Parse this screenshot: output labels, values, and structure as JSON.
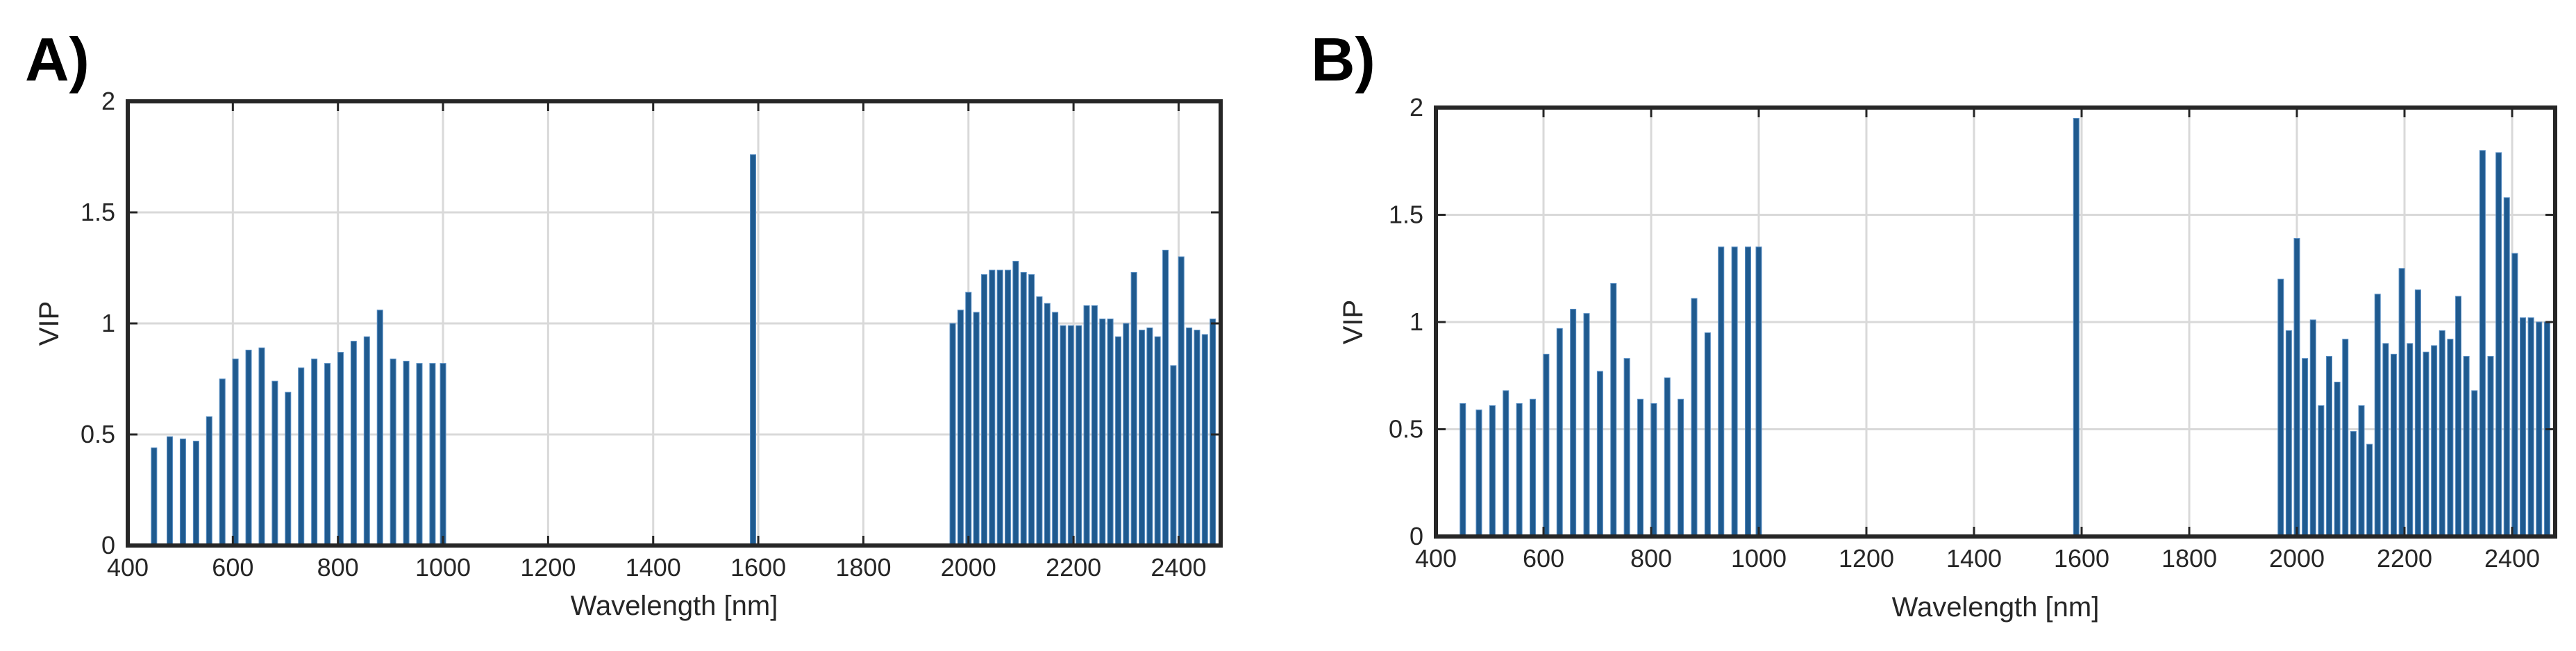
{
  "chart_data": [
    {
      "type": "bar",
      "panel_label": "A)",
      "title": "",
      "xlabel": "Wavelength [nm]",
      "ylabel": "VIP",
      "xlim": [
        400,
        2480
      ],
      "ylim": [
        0,
        2
      ],
      "xticks": [
        400,
        600,
        800,
        1000,
        1200,
        1400,
        1600,
        1800,
        2000,
        2200,
        2400
      ],
      "yticks": [
        0,
        0.5,
        1,
        1.5,
        2
      ],
      "ytick_labels": [
        "0",
        "0.5",
        "1",
        "1.5",
        "2"
      ],
      "grid": true,
      "color": "#1f5a8f",
      "x": [
        450,
        480,
        505,
        530,
        555,
        580,
        605,
        630,
        655,
        680,
        705,
        730,
        755,
        780,
        805,
        830,
        855,
        880,
        905,
        930,
        955,
        980,
        1000,
        1590,
        1970,
        1985,
        2000,
        2015,
        2030,
        2045,
        2060,
        2075,
        2090,
        2105,
        2120,
        2135,
        2150,
        2165,
        2180,
        2195,
        2210,
        2225,
        2240,
        2255,
        2270,
        2285,
        2300,
        2315,
        2330,
        2345,
        2360,
        2375,
        2390,
        2405,
        2420,
        2435,
        2450,
        2465
      ],
      "values": [
        0.44,
        0.49,
        0.48,
        0.47,
        0.58,
        0.75,
        0.84,
        0.88,
        0.89,
        0.74,
        0.69,
        0.8,
        0.84,
        0.82,
        0.87,
        0.92,
        0.94,
        1.06,
        0.84,
        0.83,
        0.82,
        0.82,
        0.82,
        1.76,
        1.0,
        1.06,
        1.14,
        1.05,
        1.22,
        1.24,
        1.24,
        1.24,
        1.28,
        1.23,
        1.22,
        1.12,
        1.09,
        1.05,
        0.99,
        0.99,
        0.99,
        1.08,
        1.08,
        1.02,
        1.02,
        0.94,
        1.0,
        1.23,
        0.97,
        0.98,
        0.94,
        1.33,
        0.81,
        1.3,
        0.98,
        0.97,
        0.95,
        1.02
      ]
    },
    {
      "type": "bar",
      "panel_label": "B)",
      "title": "",
      "xlabel": "Wavelength [nm]",
      "ylabel": "VIP",
      "xlim": [
        400,
        2480
      ],
      "ylim": [
        0,
        2
      ],
      "xticks": [
        400,
        600,
        800,
        1000,
        1200,
        1400,
        1600,
        1800,
        2000,
        2200,
        2400
      ],
      "yticks": [
        0,
        0.5,
        1,
        1.5,
        2
      ],
      "ytick_labels": [
        "0",
        "0.5",
        "1",
        "1.5",
        "2"
      ],
      "grid": true,
      "color": "#1f5a8f",
      "x": [
        450,
        480,
        505,
        530,
        555,
        580,
        605,
        630,
        655,
        680,
        705,
        730,
        755,
        780,
        805,
        830,
        855,
        880,
        905,
        930,
        955,
        980,
        1000,
        1590,
        1970,
        1985,
        2000,
        2015,
        2030,
        2045,
        2060,
        2075,
        2090,
        2105,
        2120,
        2135,
        2150,
        2165,
        2180,
        2195,
        2210,
        2225,
        2240,
        2255,
        2270,
        2285,
        2300,
        2315,
        2330,
        2345,
        2360,
        2375,
        2390,
        2405,
        2420,
        2435,
        2450,
        2465
      ],
      "values": [
        0.62,
        0.59,
        0.61,
        0.68,
        0.62,
        0.64,
        0.85,
        0.97,
        1.06,
        1.04,
        0.77,
        1.18,
        0.83,
        0.64,
        0.62,
        0.74,
        0.64,
        1.11,
        0.95,
        1.35,
        1.35,
        1.35,
        1.35,
        1.95,
        1.2,
        0.96,
        1.39,
        0.83,
        1.01,
        0.61,
        0.84,
        0.72,
        0.92,
        0.49,
        0.61,
        0.43,
        1.13,
        0.9,
        0.85,
        1.25,
        0.9,
        1.15,
        0.86,
        0.89,
        0.96,
        0.92,
        1.12,
        0.84,
        0.68,
        1.8,
        0.84,
        1.79,
        1.58,
        1.32,
        1.02,
        1.02,
        1.0,
        1.0
      ]
    }
  ]
}
